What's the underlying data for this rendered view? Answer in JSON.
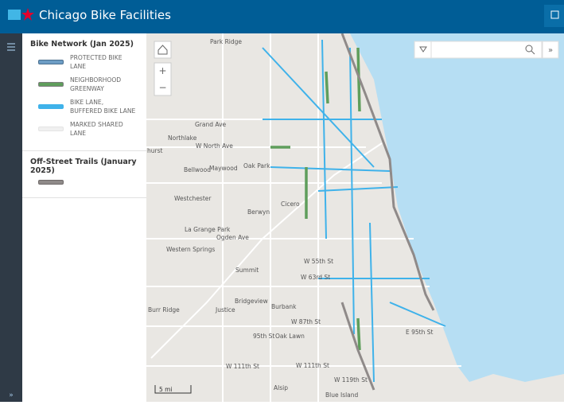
{
  "header": {
    "title": "Chicago Bike Facilities"
  },
  "legend": {
    "sections": [
      {
        "title": "Bike Network (Jan 2025)",
        "items": [
          {
            "label": "PROTECTED BIKE LANE",
            "color": "#6d9dc5",
            "edge": "#4a6f8f"
          },
          {
            "label": "NEIGHBORHOOD GREENWAY",
            "color": "#5f9e5c",
            "edge": "#7d7d7d"
          },
          {
            "label": "BIKE LANE, BUFFERED BIKE LANE",
            "color": "#3fb2ea",
            "edge": "#3fb2ea"
          },
          {
            "label": "MARKED SHARED LANE",
            "color": "#f0f0f0",
            "edge": "#e4e4e4"
          }
        ]
      },
      {
        "title": "Off-Street Trails (January 2025)",
        "items": [
          {
            "color": "#8f8a89",
            "edge": "#6f6a69"
          }
        ]
      }
    ]
  },
  "map": {
    "labels": [
      "Park Ridge",
      "Grand Ave",
      "Northlake",
      "W North Ave",
      "hurst",
      "Bellwood",
      "Maywood",
      "Oak Park",
      "Westchester",
      "Berwyn",
      "Cicero",
      "La Grange Park",
      "Ogden Ave",
      "Western Springs",
      "Summit",
      "W 55th St",
      "W 63rd St",
      "Bridgeview",
      "Burbank",
      "Burr Ridge",
      "Justice",
      "W 87th St",
      "95th St",
      "Oak Lawn",
      "E 95th St",
      "W 111th St",
      "W 111th St",
      "W 119th St",
      "Alsip",
      "Blue Island"
    ],
    "scale": "5 mi"
  }
}
